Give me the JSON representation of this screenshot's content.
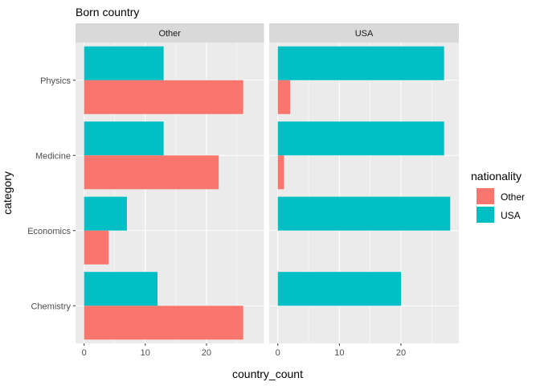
{
  "chart_data": {
    "type": "bar",
    "orientation": "horizontal",
    "title": "Born country",
    "xlabel": "country_count",
    "ylabel": "category",
    "categories": [
      "Physics",
      "Medicine",
      "Economics",
      "Chemistry"
    ],
    "facets": [
      {
        "label": "Other",
        "series": [
          {
            "name": "USA",
            "values": [
              13,
              13,
              7,
              12
            ]
          },
          {
            "name": "Other",
            "values": [
              26,
              22,
              4,
              26
            ]
          }
        ]
      },
      {
        "label": "USA",
        "series": [
          {
            "name": "USA",
            "values": [
              27,
              27,
              28,
              20
            ]
          },
          {
            "name": "Other",
            "values": [
              2,
              1,
              0,
              0
            ]
          }
        ]
      }
    ],
    "xlim": [
      -1.4,
      29.4
    ],
    "xticks": [
      0,
      10,
      20
    ],
    "grid": true,
    "legend": {
      "title": "nationality",
      "position": "right",
      "entries": [
        {
          "label": "Other",
          "color": "#F8766D"
        },
        {
          "label": "USA",
          "color": "#00BFC4"
        }
      ]
    },
    "colors": {
      "Other": "#F8766D",
      "USA": "#00BFC4",
      "panel": "#EBEBEB",
      "strip": "#D9D9D9"
    }
  }
}
